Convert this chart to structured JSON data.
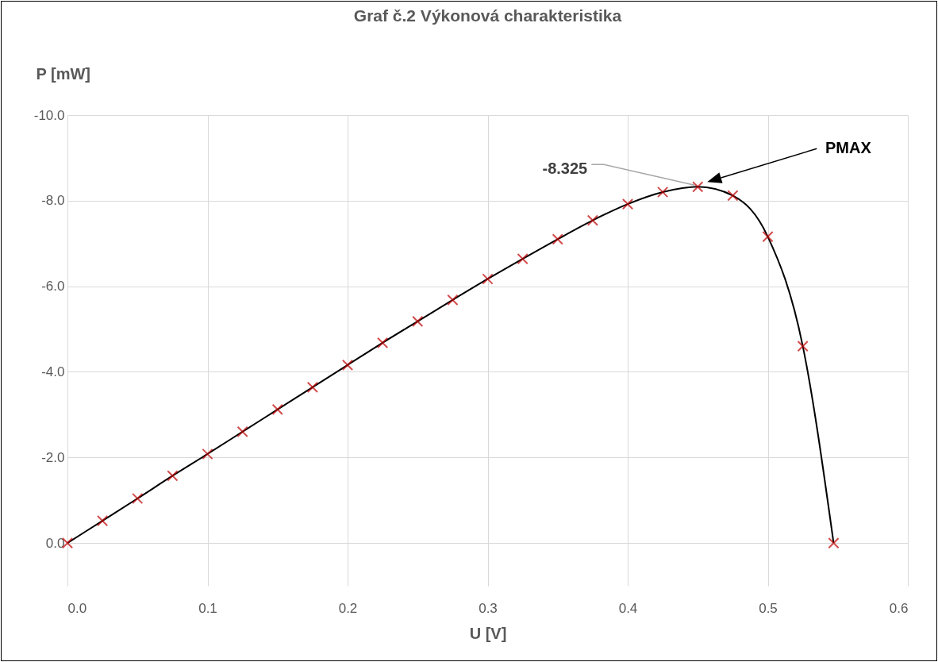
{
  "chart_data": {
    "type": "line",
    "title": "Graf č.2 Výkonová charakteristika",
    "xlabel": "U [V]",
    "ylabel": "P [mW]",
    "x": [
      0,
      0.025,
      0.05,
      0.075,
      0.1,
      0.125,
      0.15,
      0.175,
      0.2,
      0.225,
      0.25,
      0.275,
      0.3,
      0.325,
      0.35,
      0.375,
      0.4,
      0.425,
      0.45,
      0.475,
      0.5,
      0.525,
      0.547
    ],
    "series": [
      {
        "color": "#000000",
        "marker": "none",
        "values": [
          0,
          -0.52,
          -1.04,
          -1.57,
          -2.08,
          -2.6,
          -3.12,
          -3.64,
          -4.16,
          -4.68,
          -5.18,
          -5.68,
          -6.17,
          -6.64,
          -7.1,
          -7.54,
          -7.92,
          -8.2,
          -8.325,
          -8.12,
          -7.16,
          -4.6,
          0
        ]
      },
      {
        "type": "scatter",
        "color": "#c00000",
        "values": [
          0,
          -0.52,
          -1.04,
          -1.57,
          -2.08,
          -2.6,
          -3.12,
          -3.64,
          -4.16,
          -4.68,
          -5.18,
          -5.68,
          -6.17,
          -6.64,
          -7.1,
          -7.54,
          -7.92,
          -8.2,
          -8.325,
          -8.12,
          -7.16,
          -4.6,
          0
        ],
        "value_labels": [
          null,
          null,
          null,
          null,
          null,
          null,
          null,
          null,
          null,
          null,
          null,
          null,
          null,
          null,
          null,
          null,
          null,
          null,
          "-8.325",
          null,
          null,
          null,
          null
        ]
      }
    ],
    "xlim": [
      0,
      0.6
    ],
    "xticks": [
      {
        "value": 0,
        "label": "0.0"
      },
      0.1,
      0.2,
      0.3,
      0.4,
      0.5,
      0.6
    ],
    "ylim": [
      1,
      -10
    ],
    "yticks": [
      {
        "value": -10,
        "label": "-10.0"
      },
      {
        "value": -8,
        "label": "-8.0"
      },
      {
        "value": -6,
        "label": "-6.0"
      },
      {
        "value": -4,
        "label": "-4.0"
      },
      {
        "value": -2,
        "label": "-2.0"
      },
      {
        "value": 0,
        "label": "0.0"
      }
    ],
    "grid": true,
    "marker": "cross",
    "annotations": [
      "PMAX"
    ]
  }
}
